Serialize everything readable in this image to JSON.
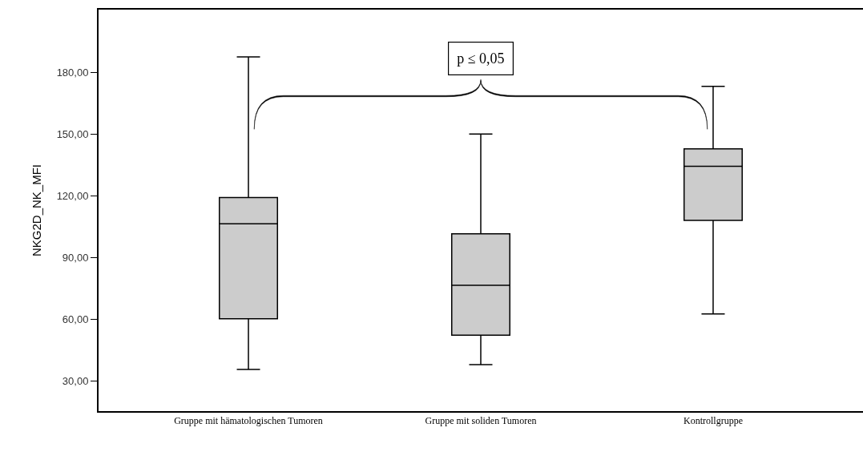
{
  "chart_data": {
    "type": "box",
    "ylabel": "NKG2D_NK_MFI",
    "categories": [
      "Gruppe mit hämatologischen Tumoren",
      "Gruppe mit soliden Tumoren",
      "Kontrollgruppe"
    ],
    "boxes": [
      {
        "low": 35.6,
        "q1": 60.2,
        "median": 106.4,
        "q3": 119.1,
        "high": 187.5
      },
      {
        "low": 37.9,
        "q1": 52.2,
        "median": 76.5,
        "q3": 101.5,
        "high": 150.0
      },
      {
        "low": 62.5,
        "q1": 108.0,
        "median": 134.3,
        "q3": 142.8,
        "high": 173.2
      }
    ],
    "color": "#cccccc",
    "ylim": [
      15.3,
      210.5
    ],
    "yticks": [
      {
        "value": 30,
        "label": "30,00"
      },
      {
        "value": 60,
        "label": "60,00"
      },
      {
        "value": 90,
        "label": "90,00"
      },
      {
        "value": 120,
        "label": "120,00"
      },
      {
        "value": 150,
        "label": "150,00"
      },
      {
        "value": 180,
        "label": "180,00"
      }
    ],
    "annotations": [
      "p ≤ 0,05"
    ]
  }
}
